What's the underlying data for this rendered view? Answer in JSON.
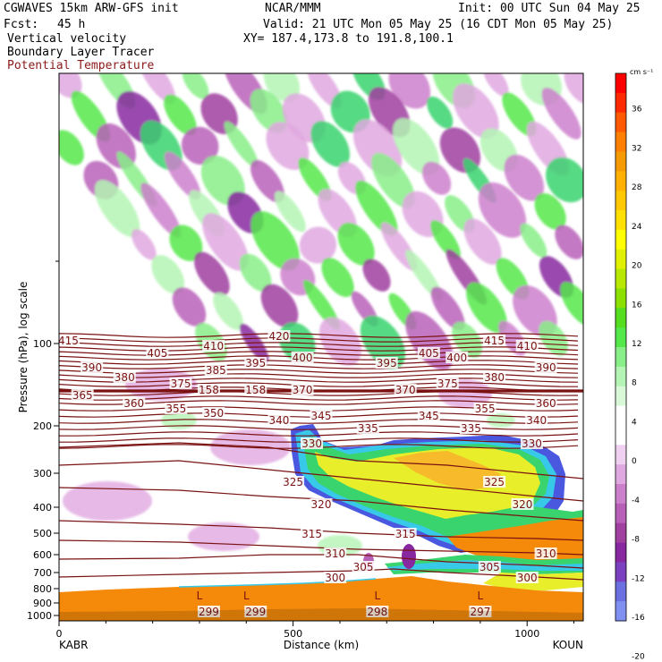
{
  "header": {
    "model": "CGWAVES 15km ARW-GFS init",
    "org": "NCAR/MMM",
    "init": "Init: 00 UTC Sun 04 May 25",
    "fcst_label": "Fcst:",
    "fcst_value": "45 h",
    "valid": "Valid: 21 UTC Mon 05 May 25 (16 CDT Mon 05 May 25)",
    "fields": [
      "Vertical velocity",
      "Boundary Layer Tracer"
    ],
    "field_contour": "Potential Temperature",
    "xy": "XY= 187.4,173.8 to 191.8,100.1"
  },
  "colors": {
    "contour": "#7a1212",
    "frame": "#000000",
    "tracer": "#f58a0a"
  },
  "chart_data": {
    "type": "heatmap",
    "title": "Vertical velocity",
    "xlabel": "Distance (km)",
    "ylabel": "Pressure (hPa), log scale",
    "x_ticks": [
      "0",
      "500",
      "1000"
    ],
    "x_tick_values": [
      0,
      500,
      1000
    ],
    "xlim": [
      0,
      1120
    ],
    "y_ticks": [
      "100",
      "200",
      "300",
      "400",
      "500",
      "600",
      "700",
      "800",
      "900",
      "1000"
    ],
    "y_scale": "log",
    "start_station": "KABR",
    "end_station": "KOUN",
    "colorbar": {
      "units": "cm s⁻¹",
      "labels": [
        "36",
        "32",
        "28",
        "24",
        "20",
        "16",
        "12",
        "8",
        "4",
        "0",
        "-4",
        "-8",
        "-12",
        "-16",
        "-20"
      ],
      "colors": [
        "#ff0000",
        "#ff2a00",
        "#ff5a00",
        "#ff7f00",
        "#f59a00",
        "#ffb000",
        "#ffc800",
        "#ffe000",
        "#ffff00",
        "#e0f000",
        "#b8e800",
        "#8ce000",
        "#55dd20",
        "#55e84a",
        "#88ee88",
        "#b4f4b4",
        "#d8f8d8",
        "#ffffff",
        "#ffffff",
        "#f0d0f0",
        "#e0a8e0",
        "#cc80cc",
        "#b860b8",
        "#a040a0",
        "#8828a0",
        "#7a40c0",
        "#6a70e0",
        "#8090f0"
      ]
    },
    "theta_labels": [
      {
        "text": "415",
        "x": 20
      },
      {
        "text": "420",
        "x": 470
      },
      {
        "text": "415",
        "x": 930
      },
      {
        "text": "410",
        "x": 1000
      },
      {
        "text": "405",
        "x": 210
      },
      {
        "text": "410",
        "x": 330
      },
      {
        "text": "405",
        "x": 790
      },
      {
        "text": "400",
        "x": 850
      },
      {
        "text": "390",
        "x": 70
      },
      {
        "text": "385",
        "x": 335
      },
      {
        "text": "395",
        "x": 420
      },
      {
        "text": "400",
        "x": 520
      },
      {
        "text": "395",
        "x": 700
      },
      {
        "text": "380",
        "x": 930
      },
      {
        "text": "390",
        "x": 1040
      },
      {
        "text": "380",
        "x": 140
      },
      {
        "text": "375",
        "x": 260
      },
      {
        "text": "375",
        "x": 830
      },
      {
        "text": "158",
        "x": 320
      },
      {
        "text": "158",
        "x": 420
      },
      {
        "text": "370",
        "x": 520
      },
      {
        "text": "370",
        "x": 740
      },
      {
        "text": "365",
        "x": 50
      },
      {
        "text": "360",
        "x": 160
      },
      {
        "text": "355",
        "x": 250
      },
      {
        "text": "350",
        "x": 330
      },
      {
        "text": "355",
        "x": 910
      },
      {
        "text": "360",
        "x": 1040
      },
      {
        "text": "340",
        "x": 470
      },
      {
        "text": "345",
        "x": 560
      },
      {
        "text": "345",
        "x": 790
      },
      {
        "text": "340",
        "x": 1020
      },
      {
        "text": "335",
        "x": 660
      },
      {
        "text": "335",
        "x": 880
      },
      {
        "text": "330",
        "x": 540
      },
      {
        "text": "330",
        "x": 1010
      },
      {
        "text": "325",
        "x": 500
      },
      {
        "text": "325",
        "x": 930
      },
      {
        "text": "320",
        "x": 560
      },
      {
        "text": "320",
        "x": 990
      },
      {
        "text": "315",
        "x": 540
      },
      {
        "text": "315",
        "x": 740
      },
      {
        "text": "310",
        "x": 590
      },
      {
        "text": "310",
        "x": 1040
      },
      {
        "text": "305",
        "x": 650
      },
      {
        "text": "305",
        "x": 920
      },
      {
        "text": "300",
        "x": 590
      },
      {
        "text": "300",
        "x": 1000
      },
      {
        "text": "299",
        "x": 320
      },
      {
        "text": "299",
        "x": 420
      },
      {
        "text": "298",
        "x": 680
      },
      {
        "text": "297",
        "x": 900
      }
    ],
    "low_markers": [
      "L",
      "L",
      "L",
      "L"
    ]
  }
}
